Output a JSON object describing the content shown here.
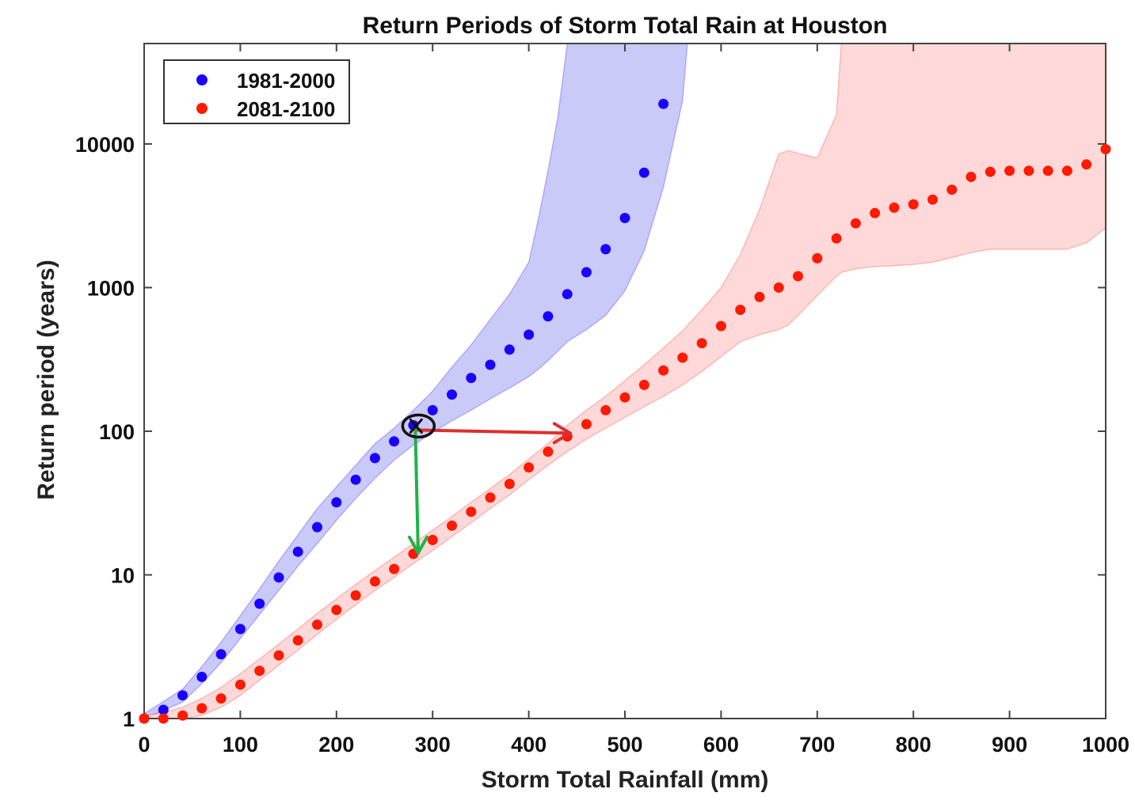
{
  "chart_data": {
    "type": "scatter",
    "title": "Return Periods of Storm Total Rain at Houston",
    "xlabel": "Storm Total Rainfall (mm)",
    "ylabel": "Return period (years)",
    "xlim": [
      0,
      1000
    ],
    "ylim": [
      1,
      50000
    ],
    "yscale": "log",
    "xticks": [
      "0",
      "100",
      "200",
      "300",
      "400",
      "500",
      "600",
      "700",
      "800",
      "900",
      "1000"
    ],
    "yticks": [
      "1",
      "10",
      "100",
      "1000",
      "10000"
    ],
    "legend": {
      "position": "top-left"
    },
    "series": [
      {
        "name": "1981-2000",
        "color": "#1a00ff",
        "band_color": "#b8b8f5",
        "x": [
          0,
          20,
          40,
          60,
          80,
          100,
          120,
          140,
          160,
          180,
          200,
          220,
          240,
          260,
          280,
          300,
          320,
          340,
          360,
          380,
          400,
          420,
          440,
          460,
          480,
          500,
          520,
          540
        ],
        "y": [
          1.0,
          1.15,
          1.45,
          1.95,
          2.8,
          4.2,
          6.3,
          9.6,
          14.5,
          21.5,
          32,
          46,
          65,
          85,
          110,
          140,
          180,
          235,
          290,
          370,
          470,
          630,
          900,
          1280,
          1850,
          3050,
          6300,
          19000
        ],
        "band_x": [
          0,
          40,
          60,
          80,
          100,
          120,
          140,
          160,
          180,
          200,
          220,
          240,
          260,
          280,
          300,
          320,
          340,
          360,
          380,
          400,
          410,
          420,
          430,
          440,
          460,
          480,
          500,
          520,
          540,
          560,
          565
        ],
        "band_upper": [
          1.08,
          1.6,
          2.3,
          3.4,
          5.2,
          8.0,
          12.5,
          19,
          29,
          41,
          58,
          82,
          105,
          140,
          190,
          280,
          400,
          600,
          900,
          1500,
          3000,
          6500,
          15000,
          50000,
          50000,
          50000,
          50000,
          50000,
          50000,
          50000,
          50000
        ],
        "band_lower": [
          1.0,
          1.3,
          1.75,
          2.45,
          3.6,
          5.3,
          7.8,
          11.5,
          16.5,
          24,
          34,
          47,
          63,
          80,
          98,
          118,
          140,
          168,
          200,
          240,
          270,
          310,
          360,
          420,
          510,
          640,
          950,
          1800,
          5000,
          20000,
          50000
        ]
      },
      {
        "name": "2081-2100",
        "color": "#ff1a00",
        "band_color": "#ffcccc",
        "x": [
          0,
          20,
          40,
          60,
          80,
          100,
          120,
          140,
          160,
          180,
          200,
          220,
          240,
          260,
          280,
          300,
          320,
          340,
          360,
          380,
          400,
          420,
          440,
          460,
          480,
          500,
          520,
          540,
          560,
          580,
          600,
          620,
          640,
          660,
          680,
          700,
          720,
          740,
          760,
          780,
          800,
          820,
          840,
          860,
          880,
          900,
          920,
          940,
          960,
          980,
          1000
        ],
        "y": [
          1.0,
          1.0,
          1.05,
          1.18,
          1.38,
          1.72,
          2.15,
          2.75,
          3.5,
          4.5,
          5.7,
          7.2,
          9.0,
          11.0,
          14.0,
          17.5,
          22,
          27.5,
          34.5,
          43,
          56,
          72,
          92,
          112,
          140,
          172,
          210,
          265,
          325,
          410,
          540,
          700,
          860,
          1000,
          1200,
          1600,
          2200,
          2800,
          3300,
          3600,
          3800,
          4100,
          4800,
          5900,
          6400,
          6500,
          6500,
          6500,
          6500,
          7200,
          9200
        ],
        "band_x": [
          0,
          20,
          40,
          60,
          80,
          100,
          120,
          140,
          160,
          180,
          200,
          220,
          240,
          260,
          280,
          300,
          320,
          340,
          360,
          380,
          400,
          420,
          440,
          460,
          480,
          500,
          520,
          540,
          560,
          580,
          600,
          620,
          640,
          660,
          670,
          680,
          700,
          720,
          725,
          740,
          760,
          780,
          800,
          820,
          840,
          860,
          880,
          900,
          920,
          940,
          960,
          980,
          1000
        ],
        "band_upper": [
          1.05,
          1.1,
          1.2,
          1.38,
          1.65,
          2.05,
          2.6,
          3.3,
          4.2,
          5.4,
          6.8,
          8.6,
          10.7,
          13.3,
          16.5,
          20.5,
          25.5,
          32,
          40,
          50,
          64,
          82,
          110,
          140,
          175,
          225,
          290,
          380,
          500,
          700,
          1000,
          1700,
          3500,
          8500,
          9000,
          8600,
          8000,
          16000,
          50000,
          50000,
          50000,
          50000,
          50000,
          50000,
          50000,
          50000,
          50000,
          50000,
          50000,
          50000,
          50000,
          50000,
          50000
        ],
        "band_lower": [
          1.0,
          1.0,
          1.0,
          1.05,
          1.2,
          1.45,
          1.85,
          2.35,
          3.0,
          3.85,
          4.9,
          6.2,
          7.8,
          9.6,
          12.0,
          14.8,
          18.5,
          23,
          29,
          36,
          46,
          58,
          72,
          88,
          105,
          125,
          148,
          175,
          210,
          260,
          330,
          420,
          470,
          510,
          550,
          640,
          880,
          1200,
          1280,
          1350,
          1400,
          1420,
          1450,
          1500,
          1620,
          1750,
          1850,
          1850,
          1850,
          1850,
          1850,
          2050,
          2600
        ]
      }
    ],
    "annotations": {
      "origin_point": {
        "x": 282,
        "y": 102
      },
      "red_arrow": {
        "from": {
          "x": 282,
          "y": 102
        },
        "to": {
          "x": 443,
          "y": 97
        },
        "color": "#dc2f2f"
      },
      "green_arrow": {
        "from": {
          "x": 282,
          "y": 102
        },
        "to": {
          "x": 285,
          "y": 14.2
        },
        "color": "#1fb34a"
      }
    }
  }
}
